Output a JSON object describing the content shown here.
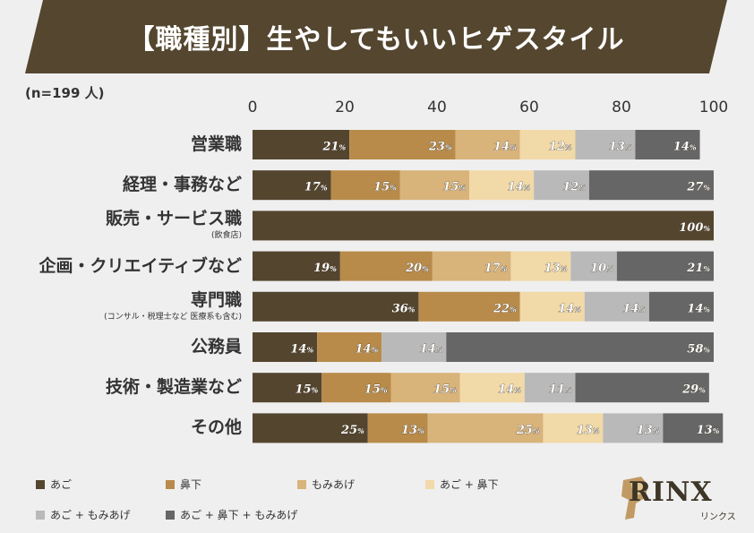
{
  "header": {
    "title": "【職種別】生やしてもいいヒゲスタイル"
  },
  "sample_label": "(n=199 人)",
  "logo": {
    "word": "RINX",
    "kana": "リンクス"
  },
  "colors": {
    "banner": "#54462f",
    "series": [
      "#54452f",
      "#b88b4a",
      "#d8b37a",
      "#f1d9a8",
      "#b9b9b9",
      "#666666"
    ]
  },
  "chart_data": {
    "type": "bar",
    "orientation": "horizontal",
    "stacked": true,
    "title": "【職種別】生やしてもいいヒゲスタイル",
    "xlim": [
      0,
      100
    ],
    "xticks": [
      "0",
      "20",
      "40",
      "60",
      "80",
      "100"
    ],
    "categories": [
      {
        "label": "営業職",
        "sub": ""
      },
      {
        "label": "経理・事務など",
        "sub": ""
      },
      {
        "label": "販売・サービス職",
        "sub": "(飲食店)"
      },
      {
        "label": "企画・クリエイティブなど",
        "sub": ""
      },
      {
        "label": "専門職",
        "sub": "(コンサル・税理士など 医療系も含む)"
      },
      {
        "label": "公務員",
        "sub": ""
      },
      {
        "label": "技術・製造業など",
        "sub": ""
      },
      {
        "label": "その他",
        "sub": ""
      }
    ],
    "series": [
      {
        "name": "あご",
        "values": [
          21,
          17,
          100,
          19,
          36,
          14,
          15,
          25
        ]
      },
      {
        "name": "鼻下",
        "values": [
          23,
          15,
          0,
          20,
          22,
          14,
          15,
          13
        ]
      },
      {
        "name": "もみあげ",
        "values": [
          14,
          15,
          0,
          17,
          0,
          0,
          15,
          25
        ]
      },
      {
        "name": "あご + 鼻下",
        "values": [
          12,
          14,
          0,
          13,
          14,
          0,
          14,
          13
        ]
      },
      {
        "name": "あご + もみあげ",
        "values": [
          13,
          12,
          0,
          10,
          14,
          14,
          11,
          13
        ]
      },
      {
        "name": "あご + 鼻下 + もみあげ",
        "values": [
          14,
          27,
          0,
          21,
          14,
          58,
          29,
          13
        ]
      }
    ],
    "value_suffix": "%"
  }
}
